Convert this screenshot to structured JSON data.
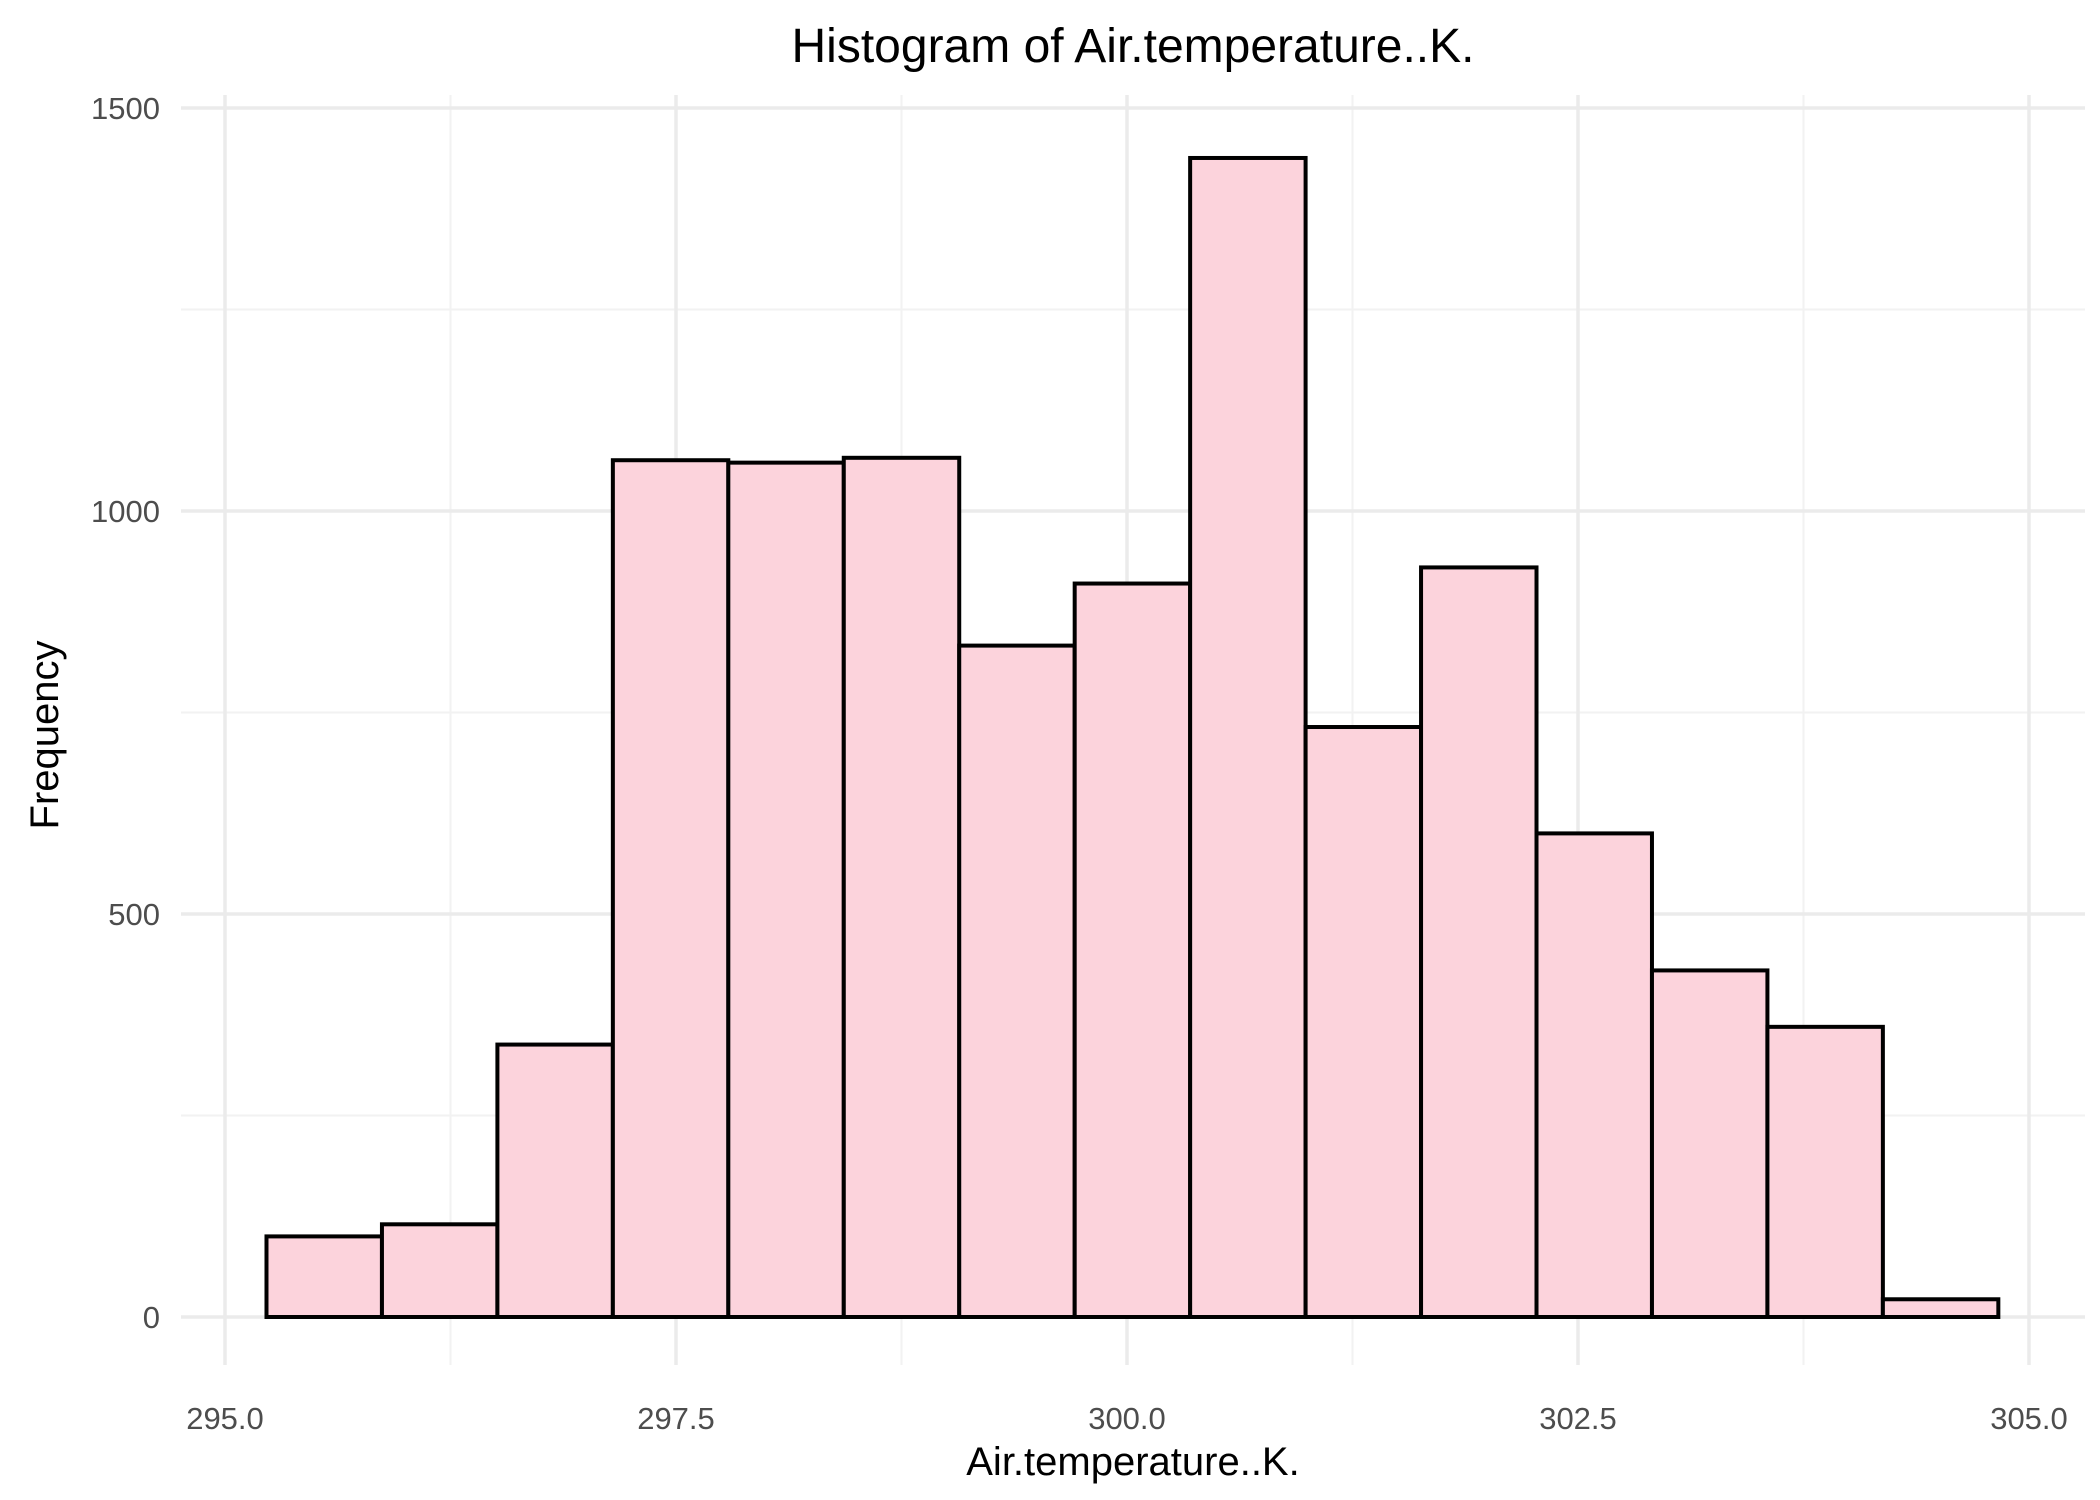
{
  "chart_data": {
    "type": "bar",
    "title": "Histogram of Air.temperature..K.",
    "xlabel": "Air.temperature..K.",
    "ylabel": "Frequency",
    "xlim": [
      295.0,
      305.0
    ],
    "ylim": [
      0,
      1500
    ],
    "x_ticks": [
      "295.0",
      "297.5",
      "300.0",
      "302.5",
      "305.0"
    ],
    "x_tick_values": [
      295.0,
      297.5,
      300.0,
      302.5,
      305.0
    ],
    "y_ticks": [
      "0",
      "500",
      "1000",
      "1500"
    ],
    "y_tick_values": [
      0,
      500,
      1000,
      1500
    ],
    "grid": true,
    "bin_edges": [
      295.23,
      295.87,
      296.51,
      297.15,
      297.79,
      298.43,
      299.07,
      299.71,
      300.35,
      300.99,
      301.63,
      302.27,
      302.91,
      303.55,
      304.19,
      304.83
    ],
    "values": [
      100,
      115,
      338,
      1063,
      1060,
      1066,
      833,
      910,
      1438,
      732,
      930,
      600,
      430,
      360,
      22
    ],
    "colors": {
      "fill": "#fcd3dc",
      "outline": "#000000",
      "grid": "#ebebeb",
      "tick_text": "#4d4d4d"
    }
  }
}
